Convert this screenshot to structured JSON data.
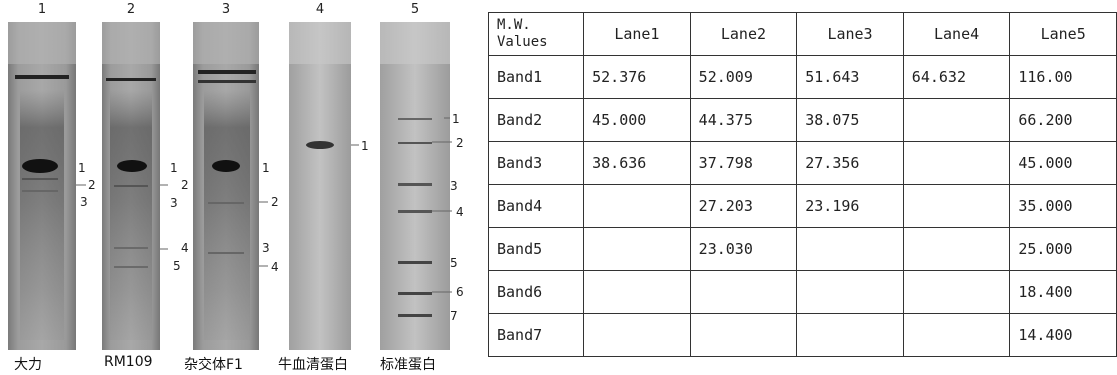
{
  "figure": {
    "lanes": [
      {
        "number": "1",
        "caption": "大力",
        "bands": [
          "1",
          "2",
          "3"
        ]
      },
      {
        "number": "2",
        "caption": "RM109",
        "bands": [
          "1",
          "2",
          "3",
          "4",
          "5"
        ]
      },
      {
        "number": "3",
        "caption": "杂交体F1",
        "bands": [
          "1",
          "2",
          "3",
          "4"
        ]
      },
      {
        "number": "4",
        "caption": "牛血清蛋白",
        "bands": [
          "1"
        ]
      },
      {
        "number": "5",
        "caption": "标准蛋白",
        "bands": [
          "1",
          "2",
          "3",
          "4",
          "5",
          "6",
          "7"
        ]
      }
    ]
  },
  "table": {
    "corner_line1": "M.W.",
    "corner_line2": "Values",
    "columns": [
      "Lane1",
      "Lane2",
      "Lane3",
      "Lane4",
      "Lane5"
    ],
    "rows": [
      {
        "band": "Band1",
        "values": [
          "52.376",
          "52.009",
          "51.643",
          "64.632",
          "116.00"
        ]
      },
      {
        "band": "Band2",
        "values": [
          "45.000",
          "44.375",
          "38.075",
          "",
          "66.200"
        ]
      },
      {
        "band": "Band3",
        "values": [
          "38.636",
          "37.798",
          "27.356",
          "",
          "45.000"
        ]
      },
      {
        "band": "Band4",
        "values": [
          "",
          "27.203",
          "23.196",
          "",
          "35.000"
        ]
      },
      {
        "band": "Band5",
        "values": [
          "",
          "23.030",
          "",
          "",
          "25.000"
        ]
      },
      {
        "band": "Band6",
        "values": [
          "",
          "",
          "",
          "",
          "18.400"
        ]
      },
      {
        "band": "Band7",
        "values": [
          "",
          "",
          "",
          "",
          "14.400"
        ]
      }
    ]
  }
}
